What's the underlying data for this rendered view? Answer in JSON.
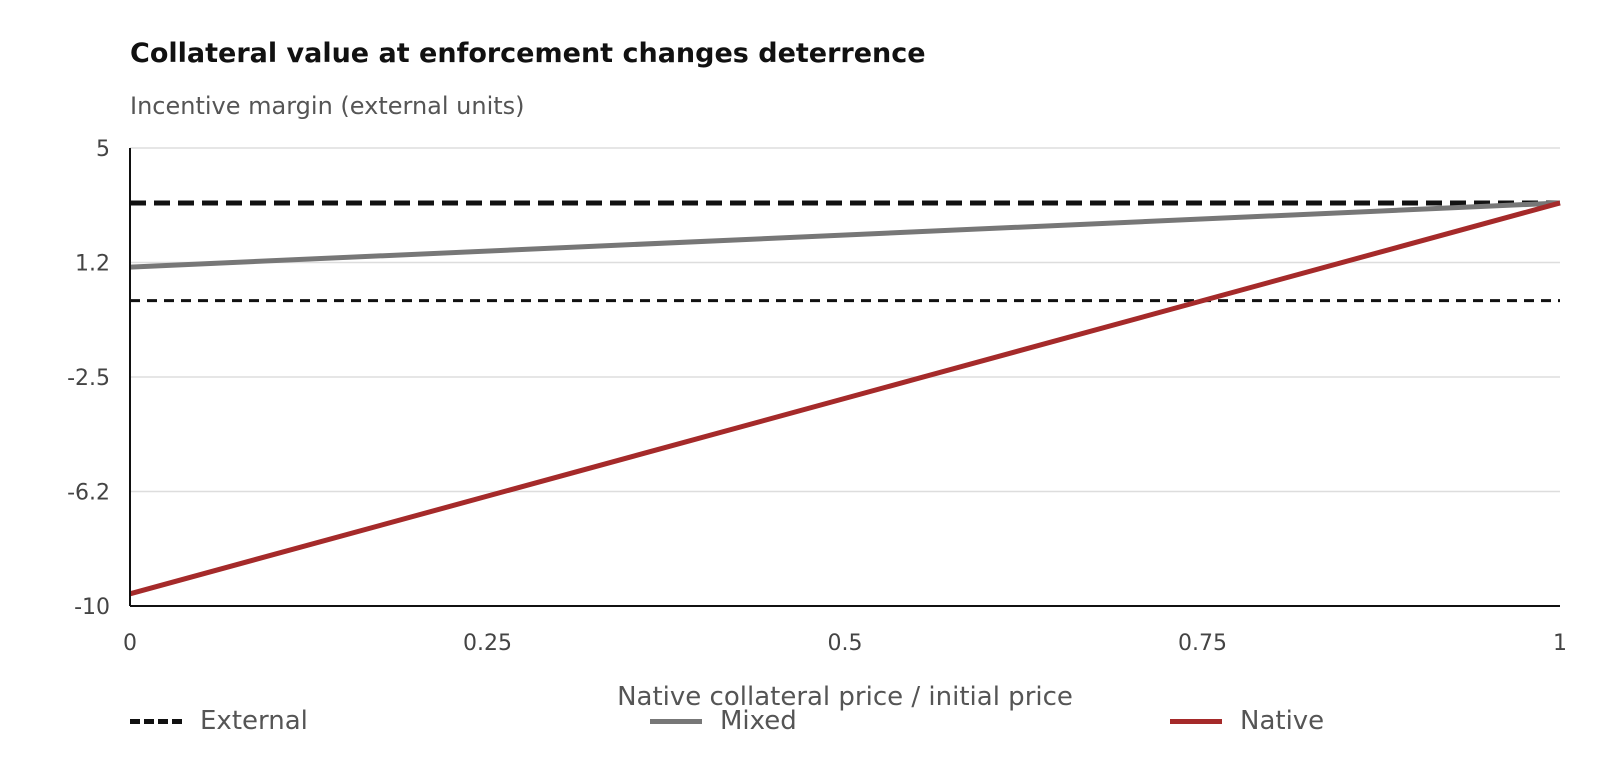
{
  "chart_data": {
    "type": "line",
    "title": "Collateral value at enforcement changes deterrence",
    "subtitle": "Incentive margin (external units)",
    "xlabel": "Native collateral price / initial price",
    "ylabel": "",
    "xlim": [
      0,
      1
    ],
    "ylim": [
      -10,
      5
    ],
    "x_ticks": [
      0,
      0.25,
      0.5,
      0.75,
      1
    ],
    "x_tick_labels": [
      "0",
      "0.25",
      "0.5",
      "0.75",
      "1"
    ],
    "y_ticks": [
      -10,
      -6.25,
      -2.5,
      1.25,
      5
    ],
    "y_tick_labels": [
      "-10",
      "-6.2",
      "-2.5",
      "1.2",
      "5"
    ],
    "grid": "horizontal",
    "legend_position": "bottom",
    "reference_lines": [
      {
        "y": 0,
        "style": "dashed",
        "color": "#111111"
      }
    ],
    "series": [
      {
        "name": "External",
        "style": "dashed",
        "color": "#111111",
        "x": [
          0,
          1
        ],
        "y": [
          3.2,
          3.2
        ]
      },
      {
        "name": "Mixed",
        "style": "solid",
        "color": "#777777",
        "x": [
          0,
          1
        ],
        "y": [
          1.1,
          3.2
        ]
      },
      {
        "name": "Native",
        "style": "solid",
        "color": "#a52a2a",
        "x": [
          0,
          1
        ],
        "y": [
          -9.6,
          3.2
        ]
      }
    ]
  }
}
